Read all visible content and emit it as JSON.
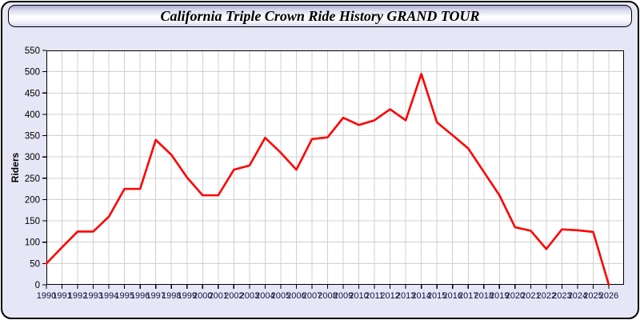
{
  "window": {
    "title": "California Triple Crown Ride History GRAND TOUR"
  },
  "chart_data": {
    "type": "line",
    "title": "California Triple Crown Ride History GRAND TOUR",
    "xlabel": "",
    "ylabel": "Riders",
    "x": [
      1990,
      1991,
      1992,
      1993,
      1994,
      1995,
      1996,
      1997,
      1998,
      1999,
      2000,
      2001,
      2002,
      2003,
      2004,
      2005,
      2006,
      2007,
      2008,
      2009,
      2010,
      2011,
      2012,
      2013,
      2014,
      2015,
      2016,
      2017,
      2018,
      2019,
      2020,
      2021,
      2022,
      2023,
      2024,
      2025,
      2026
    ],
    "series": [
      {
        "name": "Riders",
        "color": "#ff0000",
        "values": [
          50,
          88,
          125,
          125,
          160,
          225,
          225,
          340,
          305,
          252,
          210,
          210,
          270,
          280,
          345,
          310,
          270,
          342,
          346,
          392,
          375,
          386,
          412,
          386,
          495,
          381,
          351,
          320,
          265,
          210,
          135,
          127,
          84,
          130,
          128,
          124,
          0
        ]
      }
    ],
    "ylim": [
      0,
      550
    ],
    "ytick_step": 50,
    "grid": true,
    "legend_position": "none",
    "plot_background": "#ffffff",
    "grid_color": "#d0d0d0",
    "axis_color": "#000000",
    "x_label_color": "#101040",
    "y_label_color": "#000000",
    "frame_background": "#e6e6f6",
    "title_bar_gradient_top": "#a8a8cd",
    "title_bar_gradient_bottom": "#cdcde8"
  }
}
